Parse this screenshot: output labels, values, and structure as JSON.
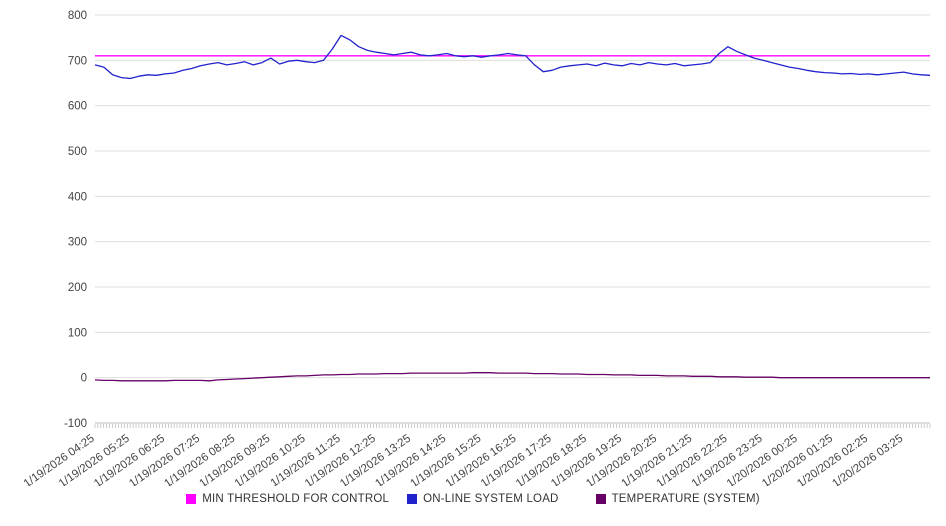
{
  "chart_data": {
    "type": "line",
    "title": "",
    "xlabel": "",
    "ylabel": "",
    "ylim": [
      -100,
      800
    ],
    "y_ticks": [
      800,
      700,
      600,
      500,
      400,
      300,
      200,
      100,
      0,
      -100
    ],
    "grid": true,
    "legend_position": "bottom",
    "x_tick_every": 4,
    "x_tick_labels": [
      "1/19/2026 04:25",
      "1/19/2026 05:25",
      "1/19/2026 06:25",
      "1/19/2026 07:25",
      "1/19/2026 08:25",
      "1/19/2026 09:25",
      "1/19/2026 10:25",
      "1/19/2026 11:25",
      "1/19/2026 12:25",
      "1/19/2026 13:25",
      "1/19/2026 14:25",
      "1/19/2026 15:25",
      "1/19/2026 16:25",
      "1/19/2026 17:25",
      "1/19/2026 18:25",
      "1/19/2026 19:25",
      "1/19/2026 20:25",
      "1/19/2026 21:25",
      "1/19/2026 22:25",
      "1/19/2026 23:25",
      "1/20/2026 00:25",
      "1/20/2026 01:25",
      "1/20/2026 02:25",
      "1/20/2026 03:25"
    ],
    "series": [
      {
        "name": "MIN THRESHOLD FOR CONTROL",
        "color": "#ff00ff",
        "constant": 710
      },
      {
        "name": "ON-LINE SYSTEM LOAD",
        "color": "#2222cc",
        "values": [
          690,
          685,
          668,
          662,
          660,
          665,
          668,
          667,
          670,
          672,
          678,
          682,
          688,
          692,
          695,
          690,
          693,
          697,
          690,
          695,
          705,
          692,
          698,
          700,
          697,
          695,
          700,
          725,
          755,
          745,
          730,
          722,
          718,
          715,
          712,
          715,
          718,
          712,
          710,
          712,
          715,
          710,
          708,
          710,
          707,
          710,
          712,
          715,
          712,
          710,
          690,
          675,
          678,
          685,
          688,
          690,
          692,
          688,
          694,
          690,
          688,
          693,
          690,
          695,
          692,
          690,
          693,
          688,
          690,
          692,
          695,
          715,
          730,
          720,
          712,
          705,
          700,
          695,
          690,
          685,
          682,
          678,
          675,
          673,
          672,
          670,
          671,
          669,
          670,
          668,
          670,
          672,
          674,
          670,
          668,
          667
        ]
      },
      {
        "name": "TEMPERATURE (SYSTEM)",
        "color": "#660066",
        "values": [
          -5,
          -6,
          -6,
          -7,
          -7,
          -7,
          -7,
          -7,
          -7,
          -6,
          -6,
          -6,
          -6,
          -7,
          -5,
          -4,
          -3,
          -2,
          -1,
          0,
          1,
          2,
          3,
          4,
          4,
          5,
          6,
          6,
          7,
          7,
          8,
          8,
          8,
          9,
          9,
          9,
          10,
          10,
          10,
          10,
          10,
          10,
          10,
          11,
          11,
          11,
          10,
          10,
          10,
          10,
          9,
          9,
          9,
          8,
          8,
          8,
          7,
          7,
          7,
          6,
          6,
          6,
          5,
          5,
          5,
          4,
          4,
          4,
          3,
          3,
          3,
          2,
          2,
          2,
          1,
          1,
          1,
          1,
          0,
          0,
          0,
          0,
          0,
          0,
          0,
          0,
          0,
          0,
          0,
          0,
          0,
          0,
          0,
          0,
          0,
          0
        ]
      }
    ]
  },
  "legend": {
    "items": [
      {
        "label": "MIN THRESHOLD FOR CONTROL",
        "color": "#ff00ff"
      },
      {
        "label": "ON-LINE SYSTEM LOAD",
        "color": "#2222cc"
      },
      {
        "label": "TEMPERATURE (SYSTEM)",
        "color": "#660066"
      }
    ]
  }
}
